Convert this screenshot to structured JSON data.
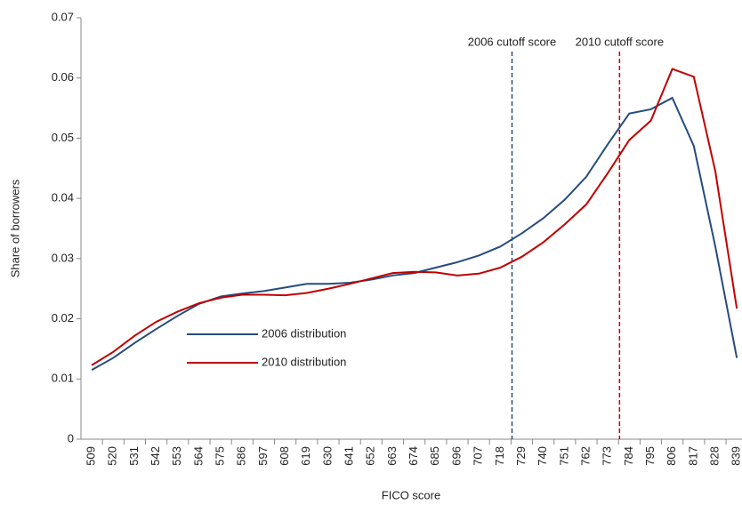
{
  "chart_data": {
    "type": "line",
    "x_label": "FICO score",
    "y_label": "Share of borrowers",
    "categories": [
      "509",
      "520",
      "531",
      "542",
      "553",
      "564",
      "575",
      "586",
      "597",
      "608",
      "619",
      "630",
      "641",
      "652",
      "663",
      "674",
      "685",
      "696",
      "707",
      "718",
      "729",
      "740",
      "751",
      "762",
      "773",
      "784",
      "795",
      "806",
      "817",
      "828",
      "839"
    ],
    "series": [
      {
        "name": "2006 distribution",
        "color": "#264c7d",
        "values": [
          0.0115,
          0.0135,
          0.016,
          0.0183,
          0.0205,
          0.0225,
          0.0237,
          0.0242,
          0.0246,
          0.0252,
          0.0258,
          0.0258,
          0.026,
          0.0265,
          0.0272,
          0.0276,
          0.0285,
          0.0294,
          0.0305,
          0.032,
          0.0342,
          0.0367,
          0.0398,
          0.0436,
          0.049,
          0.0541,
          0.0548,
          0.0567,
          0.0487,
          0.032,
          0.0135
        ]
      },
      {
        "name": "2010 distribution",
        "color": "#c00000",
        "values": [
          0.0123,
          0.0145,
          0.0172,
          0.0195,
          0.0212,
          0.0226,
          0.0235,
          0.024,
          0.024,
          0.0239,
          0.0243,
          0.025,
          0.0258,
          0.0267,
          0.0276,
          0.0278,
          0.0277,
          0.0272,
          0.0275,
          0.0285,
          0.0303,
          0.0327,
          0.0357,
          0.039,
          0.0442,
          0.0497,
          0.0529,
          0.0615,
          0.0602,
          0.0445,
          0.0217
        ]
      }
    ],
    "cutoff_lines": [
      {
        "label": "2006 cutoff score",
        "value": 724,
        "color": "#264c7d"
      },
      {
        "label": "2010 cutoff score",
        "value": 779,
        "color": "#c00000"
      }
    ],
    "ylim": [
      0,
      0.07
    ],
    "yticks": [
      0,
      0.01,
      0.02,
      0.03,
      0.04,
      0.05,
      0.06,
      0.07
    ]
  }
}
